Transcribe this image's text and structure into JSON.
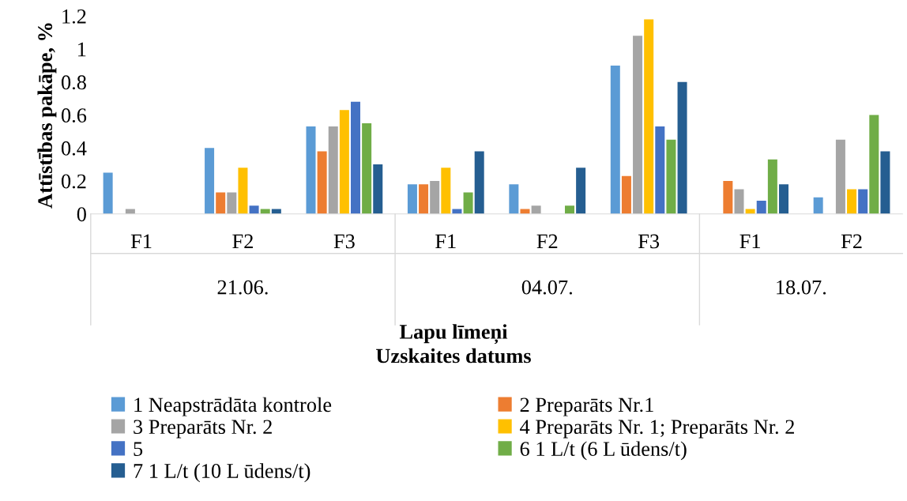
{
  "chart_data": {
    "type": "bar",
    "categories": [
      "F1",
      "F2",
      "F3",
      "F1",
      "F2",
      "F3",
      "F1",
      "F2"
    ],
    "annotations": [
      "21.06.",
      "04.07.",
      "18.07."
    ],
    "xlabel": "Lapu līmeņi\nUzskaites datums",
    "ylabel": "Attīstības pakāpe, %",
    "ylim": [
      0,
      1.2
    ],
    "yticks": [
      0,
      0.2,
      0.4,
      0.6,
      0.8,
      1,
      1.2
    ],
    "grid": false,
    "legend": "bottom",
    "series": [
      {
        "name": "1 Neapstrādāta kontrole",
        "color": "#5b9bd5",
        "values": [
          0.25,
          0.4,
          0.53,
          0.18,
          0.18,
          0.9,
          0,
          0.1
        ]
      },
      {
        "name": "2 Preparāts Nr.1",
        "color": "#ed7d31",
        "values": [
          0,
          0.13,
          0.38,
          0.18,
          0.03,
          0.23,
          0.2,
          0
        ]
      },
      {
        "name": "3 Preparāts Nr. 2",
        "color": "#a5a5a5",
        "values": [
          0.03,
          0.13,
          0.53,
          0.2,
          0.05,
          1.08,
          0.15,
          0.45
        ]
      },
      {
        "name": "4 Preparāts Nr. 1; Preparāts Nr. 2",
        "color": "#ffc000",
        "values": [
          0,
          0.28,
          0.63,
          0.28,
          0,
          1.18,
          0.03,
          0.15
        ]
      },
      {
        "name": "5",
        "color": "#4472c4",
        "values": [
          0,
          0.05,
          0.68,
          0.03,
          0,
          0.53,
          0.08,
          0.15
        ]
      },
      {
        "name": "6 1 L/t (6 L ūdens/t)",
        "color": "#70ad47",
        "values": [
          0,
          0.03,
          0.55,
          0.13,
          0.05,
          0.45,
          0.33,
          0.6
        ]
      },
      {
        "name": "7 1 L/t (10 L ūdens/t)",
        "color": "#255e91",
        "values": [
          0,
          0.03,
          0.3,
          0.38,
          0.28,
          0.8,
          0.18,
          0.38
        ]
      }
    ]
  }
}
